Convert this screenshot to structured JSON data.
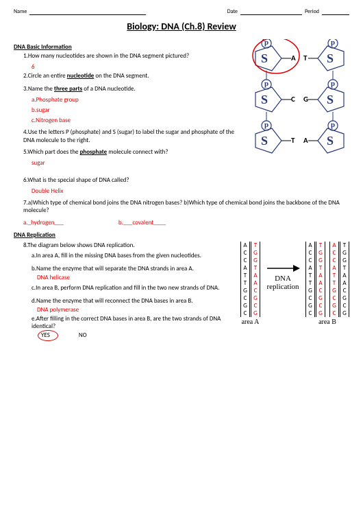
{
  "header": {
    "name": "Name",
    "date": "Date",
    "period": "Period"
  },
  "title": "Biology: DNA (Ch.8) Review",
  "section1": {
    "heading": "DNA Basic Information",
    "q1": "1.How many nucleotides are shown in the DNA segment pictured?",
    "a1": "6",
    "q2": "2.Circle an entire ",
    "q2b": "nucleotide",
    "q2c": " on the DNA segment.",
    "q3": "3.Name the ",
    "q3b": "three parts",
    "q3c": " of a DNA nucleotide.",
    "a3a": "a.Phosphate group",
    "a3b": "b.sugar",
    "a3c": "c.Nitrogen base",
    "q4": "4.Use the letters P (phosphate) and S (sugar) to label the sugar and phosphate of the DNA molecule to the right.",
    "q5": "5.Which part does the ",
    "q5b": "phosphate",
    "q5c": " molecule connect with?",
    "a5": "sugar",
    "q6": "6.What is the special shape of DNA called?",
    "a6": "Double Helix",
    "q7": "7.a)Which type of chemical bond joins the DNA nitrogen bases? b)Which type of chemical bond joins the backbone of the DNA molecule?",
    "a7a": "a._hydrogen___",
    "a7b": "b.___covalent____"
  },
  "section2": {
    "heading": "DNA Replication",
    "q8": "8.The diagram below shows DNA replication.",
    "q8a": "a.In area A, fill in the missing DNA bases from the given nucleotides.",
    "q8b": "b.Name the enzyme that will separate the DNA strands in area A.",
    "a8b": "DNA helicase",
    "q8c": "c.In area B, perform DNA replication and fill in the two new strands of DNA.",
    "q8d": "d.Name the enzyme that will reconnect the DNA bases in area B.",
    "a8d": "DNA polymerase",
    "q8e": "e.After filling in the correct DNA bases in area B, are the two strands of DNA identical?",
    "yes": "YES",
    "no": "NO"
  },
  "diagram": {
    "bases": [
      {
        "l": "A",
        "r": "T",
        "dots": "·"
      },
      {
        "l": "C",
        "r": "G",
        "dots": "·"
      },
      {
        "l": "T",
        "r": "A",
        "dots": "·"
      }
    ],
    "S": "S",
    "p": "p"
  },
  "replication": {
    "label": "DNA\nreplication",
    "areaA": "area A",
    "areaB": "area B",
    "strandA1": [
      "A",
      "C",
      "C",
      "A",
      "T",
      "T",
      "G",
      "C",
      "G",
      "C"
    ],
    "strandA2": [
      "T",
      "G",
      "G",
      "T",
      "A",
      "A",
      "C",
      "G",
      "C",
      "G"
    ],
    "strandB1": [
      "A",
      "C",
      "C",
      "A",
      "T",
      "T",
      "G",
      "C",
      "G",
      "C"
    ],
    "strandB2": [
      "T",
      "G",
      "G",
      "T",
      "A",
      "A",
      "C",
      "G",
      "C",
      "G"
    ],
    "strandB3": [
      "A",
      "C",
      "C",
      "A",
      "T",
      "T",
      "G",
      "C",
      "G",
      "C"
    ],
    "strandB4": [
      "T",
      "G",
      "G",
      "T",
      "A",
      "A",
      "C",
      "G",
      "C",
      "G"
    ],
    "red_color": "#d00"
  }
}
